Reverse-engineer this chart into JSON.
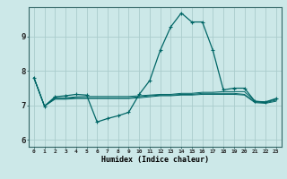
{
  "background_color": "#cce8e8",
  "line_color": "#006666",
  "grid_color": "#aacccc",
  "xlabel": "Humidex (Indice chaleur)",
  "xlim": [
    -0.5,
    23.5
  ],
  "ylim": [
    5.8,
    9.85
  ],
  "yticks": [
    6,
    7,
    8,
    9
  ],
  "xticks": [
    0,
    1,
    2,
    3,
    4,
    5,
    6,
    7,
    8,
    9,
    10,
    11,
    12,
    13,
    14,
    15,
    16,
    17,
    18,
    19,
    20,
    21,
    22,
    23
  ],
  "series": [
    [
      7.8,
      6.98,
      7.25,
      7.28,
      7.32,
      7.3,
      6.52,
      6.62,
      6.7,
      6.8,
      7.32,
      7.72,
      8.6,
      9.28,
      9.68,
      9.42,
      9.42,
      8.6,
      7.45,
      7.5,
      7.5,
      7.12,
      7.1,
      7.2
    ],
    [
      7.8,
      6.98,
      7.22,
      7.22,
      7.25,
      7.26,
      7.26,
      7.26,
      7.26,
      7.26,
      7.28,
      7.3,
      7.32,
      7.32,
      7.35,
      7.35,
      7.38,
      7.38,
      7.4,
      7.4,
      7.4,
      7.12,
      7.1,
      7.18
    ],
    [
      7.8,
      6.98,
      7.2,
      7.2,
      7.22,
      7.22,
      7.22,
      7.22,
      7.22,
      7.22,
      7.25,
      7.28,
      7.3,
      7.3,
      7.32,
      7.32,
      7.35,
      7.35,
      7.35,
      7.35,
      7.32,
      7.1,
      7.08,
      7.15
    ],
    [
      7.8,
      6.98,
      7.18,
      7.18,
      7.2,
      7.2,
      7.2,
      7.2,
      7.2,
      7.2,
      7.22,
      7.25,
      7.28,
      7.28,
      7.3,
      7.3,
      7.32,
      7.32,
      7.32,
      7.32,
      7.3,
      7.08,
      7.06,
      7.12
    ]
  ],
  "figsize": [
    3.2,
    2.0
  ],
  "dpi": 100
}
